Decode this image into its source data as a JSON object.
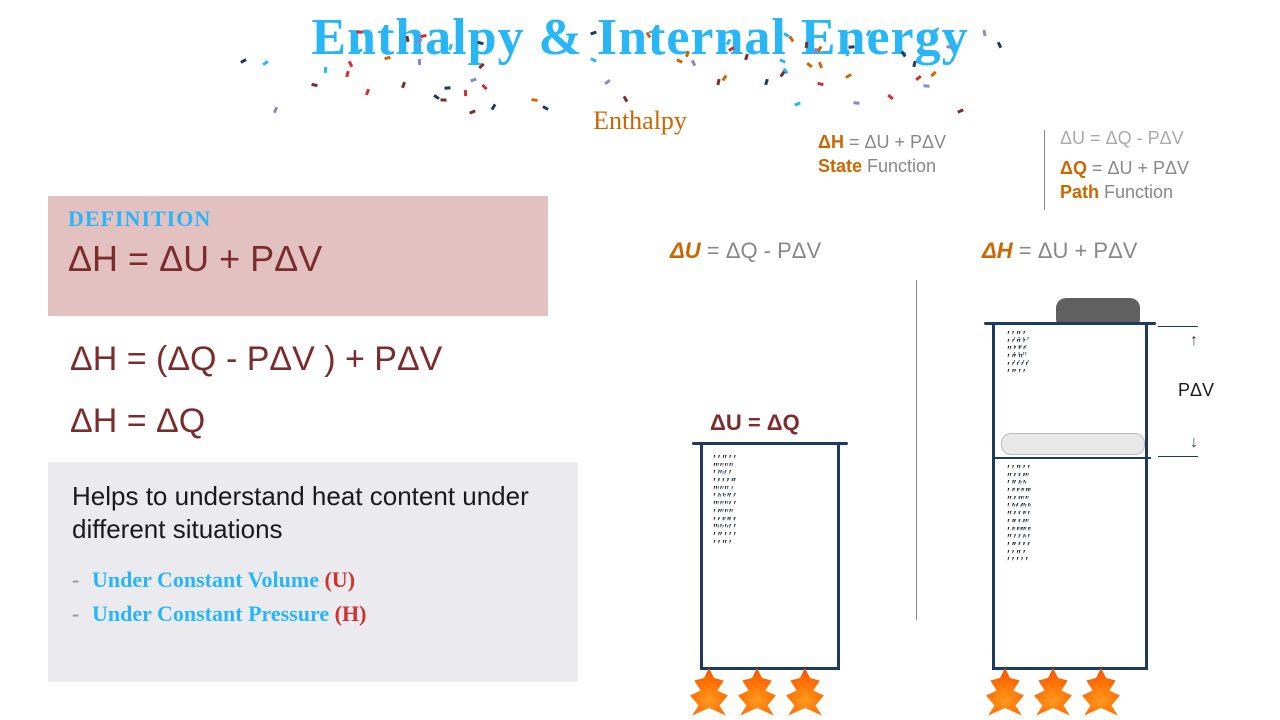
{
  "title": "Enthalpy & Internal Energy",
  "subtitle": "Enthalpy",
  "confetti_colors": [
    "#29b6f6",
    "#1f3a5f",
    "#cc6600",
    "#7b2d2d",
    "#88c",
    "#d32f2f"
  ],
  "definition": {
    "label": "DEFINITION",
    "eq": "ΔH = ΔU  + PΔV",
    "box_bg": "#e4c1c1",
    "label_color": "#29b6f6",
    "eq_color": "#7b2d2d"
  },
  "derivation": {
    "eq2": "ΔH = (ΔQ - PΔV ) + PΔV",
    "eq3": "ΔH =  ΔQ",
    "color": "#7b2d2d"
  },
  "help": {
    "text": "Helps to understand heat content under different situations",
    "bullets": [
      {
        "text": "Under Constant Volume",
        "paren": "(U)"
      },
      {
        "text": "Under Constant Pressure",
        "paren": "(H)"
      }
    ],
    "box_bg": "#eaeaef",
    "bullet_color": "#29b6f6",
    "paren_color": "#d32f2f"
  },
  "top_right": {
    "dh": {
      "lhs": "ΔH",
      "rhs": " = ΔU  + PΔV"
    },
    "state_lhs": "State",
    "state_rhs": " Function",
    "du": {
      "lhs": "ΔU",
      "rhs": " = ΔQ - PΔV"
    },
    "dq": {
      "lhs": "ΔQ",
      "rhs": " = ΔU + PΔV"
    },
    "path_lhs": "Path",
    "path_rhs": " Function"
  },
  "diagram": {
    "left_label": {
      "lhs": "ΔU",
      "rhs": " = ΔQ - PΔV"
    },
    "right_label": {
      "lhs": "ΔH",
      "rhs": " = ΔU  + PΔV"
    },
    "const_vol_label": "ΔU = ΔQ",
    "pdv_label": "PΔV",
    "cyl_border": "#1f3a5f",
    "flame_color": "#ff6a00",
    "piston_color": "#e8e8e8",
    "weight_color": "#606060"
  }
}
